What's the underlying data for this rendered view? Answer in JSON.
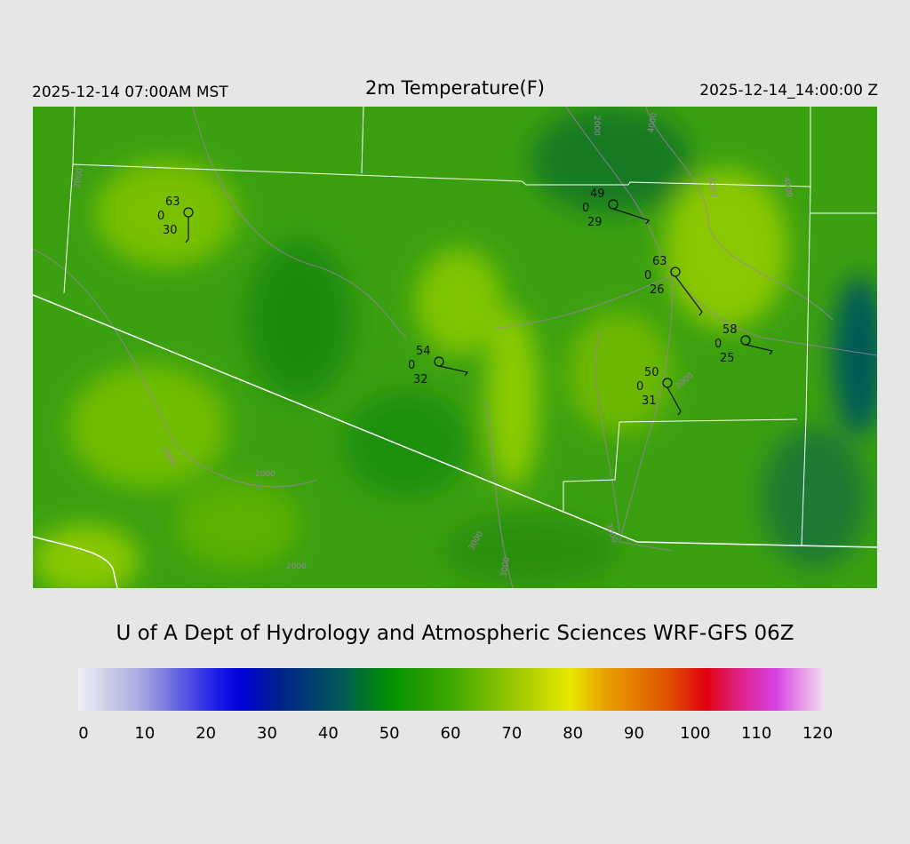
{
  "header": {
    "title": "2m Temperature(F)",
    "local_time": "2025-12-14 07:00AM MST",
    "valid_time": "2025-12-14_14:00:00 Z"
  },
  "credit": "U of A Dept of Hydrology and Atmospheric Sciences WRF-GFS 06Z",
  "colorbar": {
    "ticks": [
      "0",
      "10",
      "20",
      "30",
      "40",
      "50",
      "60",
      "70",
      "80",
      "90",
      "100",
      "110",
      "120"
    ],
    "min": 0,
    "max": 120,
    "stops": [
      [
        0,
        "#f0f0f4"
      ],
      [
        10,
        "#a8a8e0"
      ],
      [
        22,
        "#2020e8"
      ],
      [
        26,
        "#0000d8"
      ],
      [
        32,
        "#002090"
      ],
      [
        42,
        "#005858"
      ],
      [
        50,
        "#009000"
      ],
      [
        60,
        "#40a800"
      ],
      [
        70,
        "#98c800"
      ],
      [
        79,
        "#e8e800"
      ],
      [
        85,
        "#e8a000"
      ],
      [
        95,
        "#e05000"
      ],
      [
        101,
        "#e00010"
      ],
      [
        106,
        "#e02080"
      ],
      [
        112,
        "#d840e0"
      ],
      [
        120,
        "#f0e0f0"
      ]
    ]
  },
  "stations": [
    {
      "temp": "63",
      "cover": "0",
      "dew": "30"
    },
    {
      "temp": "49",
      "cover": "0",
      "dew": "29"
    },
    {
      "temp": "63",
      "cover": "0",
      "dew": "26"
    },
    {
      "temp": "54",
      "cover": "0",
      "dew": "32"
    },
    {
      "temp": "58",
      "cover": "0",
      "dew": "25"
    },
    {
      "temp": "50",
      "cover": "0",
      "dew": "31"
    }
  ],
  "contour_labels": [
    "2000",
    "2000",
    "3000",
    "4000",
    "3000",
    "2000",
    "2000",
    "3000",
    "3000",
    "2000",
    "4000",
    "4000"
  ],
  "colors": {
    "boundary": "#ffffff",
    "contour": "#a080b0",
    "station": "#101010"
  }
}
